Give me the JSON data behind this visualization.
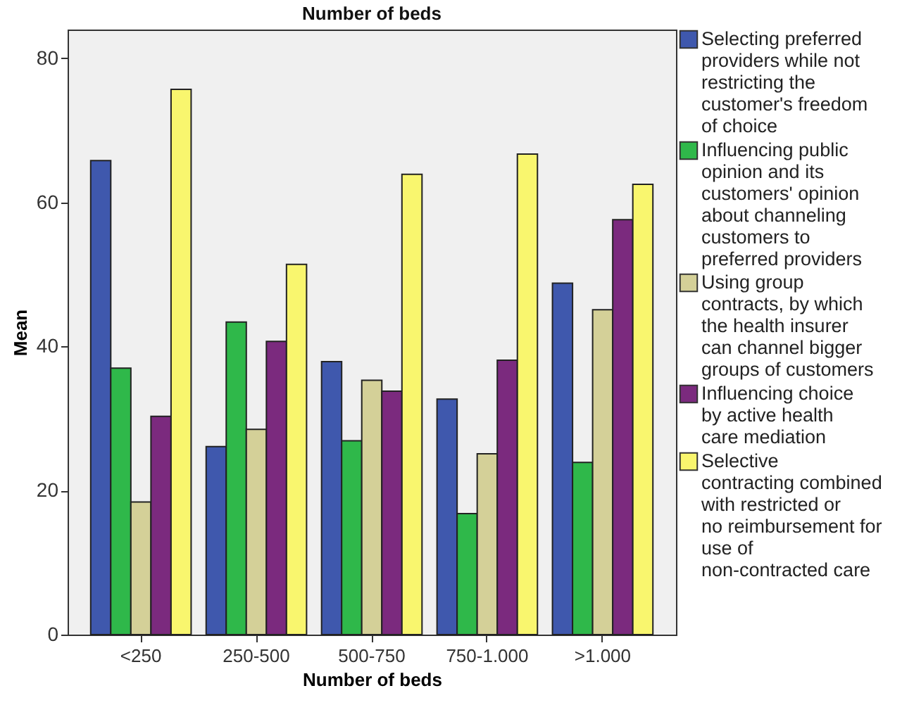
{
  "chart_data": {
    "type": "bar",
    "title": "Number of beds",
    "xlabel": "Number of beds",
    "ylabel": "Mean",
    "categories": [
      "<250",
      "250-500",
      "500-750",
      "750-1.000",
      ">1.000"
    ],
    "series": [
      {
        "name": "Selecting preferred providers while not restricting the customer's freedom of choice",
        "color": "#3f58ad",
        "values": [
          65.8,
          26.1,
          37.9,
          32.7,
          48.8
        ]
      },
      {
        "name": "Influencing public opinion and its customers' opinion about channeling customers to preferred providers",
        "color": "#2fb84a",
        "values": [
          37.0,
          43.4,
          26.9,
          16.8,
          23.9
        ]
      },
      {
        "name": "Using group contracts, by which the health insurer can channel bigger groups of customers",
        "color": "#d4d098",
        "values": [
          18.4,
          28.5,
          35.3,
          25.1,
          45.1
        ]
      },
      {
        "name": "Influencing choice by active health care mediation",
        "color": "#7b2a7e",
        "values": [
          30.3,
          40.7,
          33.8,
          38.1,
          57.6
        ]
      },
      {
        "name": "Selective contracting combined with restricted or no reimbursement for use of non-contracted care",
        "color": "#f9f66e",
        "values": [
          75.7,
          51.4,
          63.9,
          66.7,
          62.5
        ]
      }
    ],
    "ylim": [
      0,
      84
    ],
    "yticks": [
      0,
      20,
      40,
      60,
      80
    ],
    "grid": false,
    "legend": "right"
  }
}
